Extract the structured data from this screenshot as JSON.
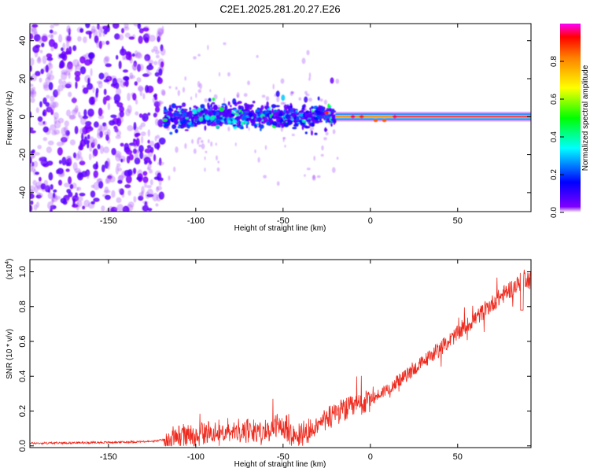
{
  "title": "C2E1.2025.281.20.27.E26",
  "chart_data": [
    {
      "type": "heatmap",
      "title": "C2E1.2025.281.20.27.E26",
      "xlabel": "Height of straight line (km)",
      "ylabel": "Frequency (Hz)",
      "xlim": [
        -195,
        92
      ],
      "ylim": [
        -50,
        49
      ],
      "x_ticks": [
        -150,
        -100,
        -50,
        0,
        50
      ],
      "x_tick_labels": [
        "-150",
        "-100",
        "-50",
        "0",
        "50"
      ],
      "y_ticks": [
        -40,
        -20,
        0,
        20,
        40
      ],
      "y_tick_labels": [
        "-40",
        "-20",
        "0",
        "20",
        "40"
      ],
      "colorbar": {
        "label": "Normalized spectral amplitude",
        "range": [
          0,
          1
        ],
        "ticks": [
          0.0,
          0.2,
          0.4,
          0.6,
          0.8
        ],
        "tick_labels": [
          "0.0",
          "0.2",
          "0.4",
          "0.6",
          "0.8"
        ],
        "colormap": [
          "#ffffff",
          "#7f00ff",
          "#0000ff",
          "#00ffff",
          "#00ff00",
          "#ffff00",
          "#ff8000",
          "#ff0000",
          "#ff00ff"
        ]
      },
      "regions": [
        {
          "name": "scattered noise",
          "x": [
            -195,
            -118
          ],
          "freq_spread_hz": 49,
          "amplitude": 0.12
        },
        {
          "name": "broadband echo",
          "x": [
            -118,
            -20
          ],
          "freq_spread_hz": 6,
          "amplitude": 0.3
        },
        {
          "name": "narrow line",
          "x": [
            -20,
            92
          ],
          "freq_hz": 0,
          "amplitude": 0.9
        }
      ]
    },
    {
      "type": "line",
      "xlabel": "Height of straight line (km)",
      "ylabel": "SNR (10 * v/v)",
      "y_multiplier_label": "(x10",
      "y_multiplier_exponent": "4",
      "y_multiplier_close": ")",
      "xlim": [
        -195,
        92
      ],
      "ylim": [
        -0.01,
        1.07
      ],
      "x_ticks": [
        -150,
        -100,
        -50,
        0,
        50
      ],
      "x_tick_labels": [
        "-150",
        "-100",
        "-50",
        "0",
        "50"
      ],
      "y_ticks": [
        0.0,
        0.2,
        0.4,
        0.6,
        0.8,
        1.0
      ],
      "y_tick_labels": [
        "0.0",
        "0.2",
        "0.4",
        "0.6",
        "0.8",
        "1.0"
      ],
      "series": [
        {
          "name": "SNR",
          "color": "#ee2a1e",
          "x": [
            -195,
            -150,
            -125,
            -118,
            -100,
            -80,
            -60,
            -52,
            -45,
            -35,
            -28,
            -20,
            -10,
            0,
            20,
            40,
            60,
            70,
            80,
            85,
            88,
            92
          ],
          "y": [
            0.015,
            0.02,
            0.025,
            0.035,
            0.07,
            0.09,
            0.08,
            0.12,
            0.06,
            0.09,
            0.13,
            0.19,
            0.22,
            0.26,
            0.4,
            0.56,
            0.73,
            0.82,
            0.9,
            0.93,
            0.97,
            0.95
          ]
        }
      ]
    }
  ]
}
